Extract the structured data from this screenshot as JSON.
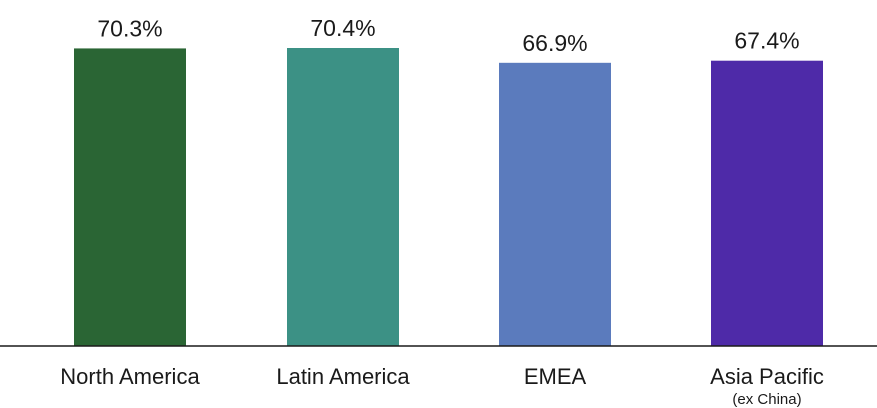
{
  "chart_data": {
    "type": "bar",
    "categories": [
      "North America",
      "Latin America",
      "EMEA",
      "Asia Pacific"
    ],
    "category_sublabels": [
      "",
      "",
      "",
      "(ex China)"
    ],
    "values": [
      70.3,
      70.4,
      66.9,
      67.4
    ],
    "value_labels": [
      "70.3%",
      "70.4%",
      "66.9%",
      "67.4%"
    ],
    "colors": [
      "#2a6534",
      "#3c9185",
      "#5b7bbd",
      "#4e2aa8"
    ],
    "ylim": [
      0,
      70.4
    ],
    "grid": false,
    "legend": "none"
  }
}
